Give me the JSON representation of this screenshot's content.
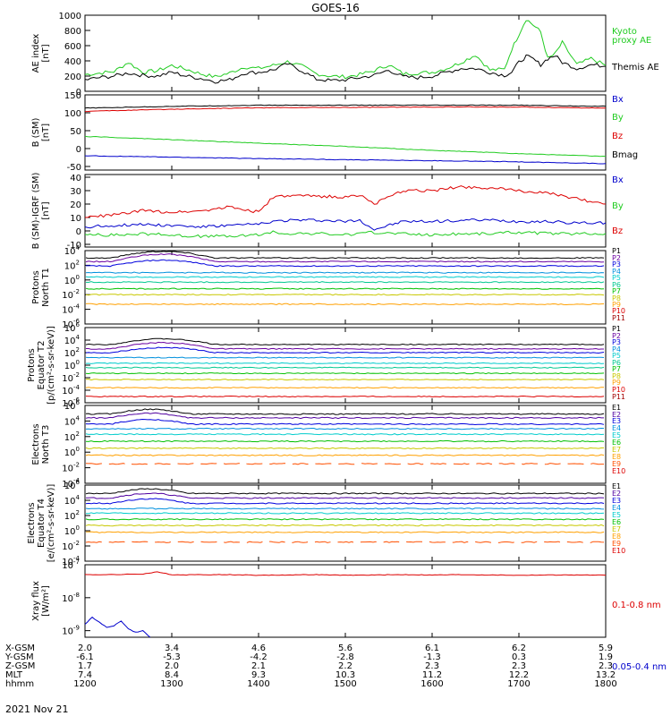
{
  "title": "GOES-16",
  "date_label": "2021 Nov 21",
  "colors": {
    "black": "#000000",
    "red": "#dd0000",
    "green": "#22cc22",
    "blue": "#0000cc",
    "p": [
      "#000000",
      "#6a00a0",
      "#0000dd",
      "#0090dd",
      "#00cccc",
      "#00c890",
      "#00c000",
      "#c8c800",
      "#ffa000",
      "#dd0000",
      "#a00000"
    ],
    "e": [
      "#000000",
      "#5000a0",
      "#0000dd",
      "#0090dd",
      "#00cccc",
      "#00c000",
      "#c8c800",
      "#ffa000",
      "#ff5000",
      "#dd0000"
    ]
  },
  "chart_data": [
    {
      "type": "line",
      "panel": "ae",
      "ylabel": [
        "AE index",
        "[nT]"
      ],
      "ylim": [
        0,
        1000
      ],
      "yticks": [
        "1000",
        "800",
        "600",
        "400",
        "200",
        "0"
      ],
      "legend": [
        {
          "text": "Kyoto",
          "color": "green"
        },
        {
          "text": "proxy AE",
          "color": "green"
        },
        {
          "text": "Themis AE",
          "color": "black"
        }
      ],
      "series": [
        {
          "name": "Kyoto proxy AE",
          "color": "green",
          "x": [
            1200,
            1210,
            1220,
            1230,
            1240,
            1250,
            1300,
            1310,
            1320,
            1330,
            1340,
            1350,
            1400,
            1410,
            1420,
            1430,
            1440,
            1450,
            1500,
            1510,
            1520,
            1530,
            1540,
            1550,
            1600,
            1610,
            1620,
            1630,
            1640,
            1650,
            1655,
            1700,
            1705,
            1710,
            1715,
            1720,
            1725,
            1730,
            1740,
            1750,
            1800
          ],
          "y": [
            220,
            240,
            260,
            380,
            250,
            270,
            340,
            290,
            230,
            190,
            240,
            320,
            300,
            340,
            390,
            330,
            230,
            200,
            190,
            220,
            270,
            350,
            230,
            240,
            250,
            300,
            380,
            480,
            280,
            290,
            550,
            750,
            950,
            870,
            780,
            430,
            490,
            640,
            350,
            430,
            340
          ]
        },
        {
          "name": "Themis AE",
          "color": "black",
          "x": [
            1200,
            1210,
            1220,
            1230,
            1240,
            1250,
            1300,
            1310,
            1320,
            1330,
            1340,
            1350,
            1400,
            1410,
            1420,
            1430,
            1440,
            1450,
            1500,
            1510,
            1520,
            1530,
            1540,
            1550,
            1600,
            1610,
            1620,
            1630,
            1640,
            1650,
            1655,
            1700,
            1705,
            1710,
            1715,
            1720,
            1725,
            1730,
            1740,
            1750,
            1800
          ],
          "y": [
            150,
            180,
            200,
            240,
            210,
            200,
            250,
            200,
            170,
            130,
            150,
            240,
            250,
            280,
            360,
            270,
            160,
            140,
            150,
            180,
            210,
            280,
            190,
            180,
            200,
            250,
            300,
            300,
            250,
            210,
            250,
            380,
            460,
            420,
            350,
            430,
            470,
            380,
            300,
            350,
            330
          ]
        }
      ]
    },
    {
      "type": "line",
      "panel": "b",
      "ylabel": [
        "B (SM)",
        "[nT]"
      ],
      "ylim": [
        -60,
        150
      ],
      "yticks": [
        "150",
        "100",
        "50",
        "0",
        "-50"
      ],
      "legend": [
        {
          "text": "Bx",
          "color": "blue"
        },
        {
          "text": "By",
          "color": "green"
        },
        {
          "text": "Bz",
          "color": "red"
        },
        {
          "text": "Bmag",
          "color": "black"
        }
      ],
      "series": [
        {
          "name": "Bmag",
          "color": "black",
          "x": [
            1200,
            1300,
            1400,
            1500,
            1600,
            1700,
            1800
          ],
          "y": [
            113,
            118,
            121,
            121,
            121,
            121,
            118
          ]
        },
        {
          "name": "Bz",
          "color": "red",
          "x": [
            1200,
            1300,
            1400,
            1500,
            1600,
            1700,
            1800
          ],
          "y": [
            104,
            110,
            114,
            115,
            116,
            116,
            113
          ]
        },
        {
          "name": "By",
          "color": "green",
          "x": [
            1200,
            1300,
            1400,
            1500,
            1600,
            1700,
            1800
          ],
          "y": [
            34,
            25,
            15,
            6,
            -5,
            -14,
            -22
          ]
        },
        {
          "name": "Bx",
          "color": "blue",
          "x": [
            1200,
            1300,
            1400,
            1500,
            1600,
            1700,
            1800
          ],
          "y": [
            -20,
            -24,
            -28,
            -31,
            -34,
            -37,
            -42
          ]
        }
      ]
    },
    {
      "type": "line",
      "panel": "db",
      "ylabel": [
        "B (SM)-IGRF (SM)",
        "[nT]"
      ],
      "ylim": [
        -12,
        42
      ],
      "yticks": [
        "40",
        "30",
        "20",
        "10",
        "0",
        "-10"
      ],
      "legend": [
        {
          "text": "Bx",
          "color": "blue"
        },
        {
          "text": "By",
          "color": "green"
        },
        {
          "text": "Bz",
          "color": "red"
        }
      ],
      "series": [
        {
          "name": "Bz",
          "color": "red",
          "x": [
            1200,
            1220,
            1240,
            1300,
            1320,
            1340,
            1400,
            1410,
            1420,
            1440,
            1500,
            1510,
            1520,
            1540,
            1600,
            1620,
            1640,
            1700,
            1720,
            1740,
            1800
          ],
          "y": [
            10,
            12,
            15,
            14,
            15,
            18,
            14,
            25,
            26,
            26,
            25,
            27,
            20,
            30,
            30,
            33,
            32,
            30,
            28,
            24,
            20
          ]
        },
        {
          "name": "Bx",
          "color": "blue",
          "x": [
            1200,
            1220,
            1240,
            1300,
            1320,
            1340,
            1400,
            1410,
            1420,
            1440,
            1500,
            1510,
            1520,
            1540,
            1600,
            1620,
            1640,
            1700,
            1720,
            1740,
            1800
          ],
          "y": [
            3,
            4,
            5,
            4,
            3,
            4,
            5,
            7,
            8,
            8,
            7,
            8,
            1,
            7,
            7,
            8,
            8,
            7,
            7,
            6,
            6
          ]
        },
        {
          "name": "By",
          "color": "green",
          "x": [
            1200,
            1220,
            1240,
            1300,
            1320,
            1340,
            1400,
            1410,
            1420,
            1440,
            1500,
            1510,
            1520,
            1540,
            1600,
            1620,
            1640,
            1700,
            1720,
            1740,
            1800
          ],
          "y": [
            -3,
            -3,
            -2,
            -3,
            -4,
            -4,
            -3,
            -1,
            -2,
            -2,
            -3,
            -2,
            -1,
            -2,
            -3,
            -2,
            -2,
            -1,
            -2,
            -2,
            -2
          ]
        }
      ]
    },
    {
      "type": "line",
      "panel": "p1",
      "ylog": true,
      "ylabel": [
        "Protons",
        "North T1"
      ],
      "ylim": [
        -6,
        4
      ],
      "yticks": [
        {
          "m": "10",
          "e": "4",
          "v": 4
        },
        {
          "m": "10",
          "e": "2",
          "v": 2
        },
        {
          "m": "10",
          "e": "0",
          "v": 0
        },
        {
          "m": "10",
          "e": "-2",
          "v": -2
        },
        {
          "m": "10",
          "e": "-4",
          "v": -4
        },
        {
          "m": "10",
          "e": "-6",
          "v": -6
        }
      ],
      "legend": [
        "P1",
        "P2",
        "P3",
        "P4",
        "P5",
        "P6",
        "P7",
        "P8",
        "P9",
        "P10",
        "P11"
      ],
      "log10_levels": [
        3.0,
        2.5,
        1.9,
        1.0,
        0.4,
        -0.3,
        -1.2,
        -2.0,
        -3.3,
        null,
        null
      ]
    },
    {
      "type": "line",
      "panel": "p2",
      "ylog": true,
      "ylabel": [
        "Protons",
        "Equator T2",
        "[p/(cm²-s-sr-keV)]"
      ],
      "ylim": [
        -6,
        6
      ],
      "yticks": [
        {
          "m": "10",
          "e": "6",
          "v": 6
        },
        {
          "m": "10",
          "e": "4",
          "v": 4
        },
        {
          "m": "10",
          "e": "2",
          "v": 2
        },
        {
          "m": "10",
          "e": "0",
          "v": 0
        },
        {
          "m": "10",
          "e": "-2",
          "v": -2
        },
        {
          "m": "10",
          "e": "-4",
          "v": -4
        },
        {
          "m": "10",
          "e": "-6",
          "v": -6
        }
      ],
      "legend": [
        "P1",
        "P2",
        "P3",
        "P4",
        "P5",
        "P6",
        "P7",
        "P8",
        "P9",
        "P10",
        "P11"
      ],
      "log10_levels": [
        3.3,
        2.6,
        2.0,
        1.2,
        0.3,
        -0.4,
        -1.3,
        -2.3,
        -3.6,
        -5.0,
        null
      ]
    },
    {
      "type": "line",
      "panel": "e1",
      "ylog": true,
      "ylabel": [
        "Electrons",
        "North T3"
      ],
      "ylim": [
        -4,
        6
      ],
      "yticks": [
        {
          "m": "10",
          "e": "6",
          "v": 6
        },
        {
          "m": "10",
          "e": "4",
          "v": 4
        },
        {
          "m": "10",
          "e": "2",
          "v": 2
        },
        {
          "m": "10",
          "e": "0",
          "v": 0
        },
        {
          "m": "10",
          "e": "-2",
          "v": -2
        },
        {
          "m": "10",
          "e": "-4",
          "v": -4
        }
      ],
      "legend": [
        "E1",
        "E2",
        "E3",
        "E4",
        "E5",
        "E6",
        "E7",
        "E8",
        "E9",
        "E10"
      ],
      "log10_levels": [
        4.9,
        4.4,
        3.6,
        3.0,
        2.3,
        1.4,
        0.5,
        -0.4,
        -1.5,
        null
      ]
    },
    {
      "type": "line",
      "panel": "e2",
      "ylog": true,
      "ylabel": [
        "Electrons",
        "Equator T4",
        "[e/(cm²-s-sr-keV)]"
      ],
      "ylim": [
        -4,
        6
      ],
      "yticks": [
        {
          "m": "10",
          "e": "6",
          "v": 6
        },
        {
          "m": "10",
          "e": "4",
          "v": 4
        },
        {
          "m": "10",
          "e": "2",
          "v": 2
        },
        {
          "m": "10",
          "e": "0",
          "v": 0
        },
        {
          "m": "10",
          "e": "-2",
          "v": -2
        },
        {
          "m": "10",
          "e": "-4",
          "v": -4
        }
      ],
      "legend": [
        "E1",
        "E2",
        "E3",
        "E4",
        "E5",
        "E6",
        "E7",
        "E8",
        "E9",
        "E10"
      ],
      "log10_levels": [
        4.9,
        4.3,
        3.6,
        2.9,
        2.3,
        1.5,
        0.7,
        -0.2,
        -1.5,
        null
      ]
    },
    {
      "type": "line",
      "panel": "xray",
      "ylog": true,
      "ylabel": [
        "Xray flux",
        "[W/m²]"
      ],
      "ylim": [
        -9.2,
        -7
      ],
      "yticks": [
        {
          "m": "10",
          "e": "-7",
          "v": -7
        },
        {
          "m": "10",
          "e": "-8",
          "v": -8
        },
        {
          "m": "10",
          "e": "-9",
          "v": -9
        }
      ],
      "legend": [
        {
          "text": "0.1-0.8 nm",
          "color": "red"
        },
        {
          "text": "0.05-0.4 nm",
          "color": "blue"
        }
      ],
      "series": [
        {
          "name": "0.1-0.8 nm",
          "color": "red",
          "x": [
            1200,
            1220,
            1240,
            1250,
            1300,
            1310,
            1320,
            1340,
            1400,
            1420,
            1440,
            1500,
            1520,
            1540,
            1600,
            1620,
            1640,
            1700,
            1720,
            1740,
            1800
          ],
          "y": [
            -7.3,
            -7.3,
            -7.28,
            -7.22,
            -7.3,
            -7.31,
            -7.3,
            -7.3,
            -7.32,
            -7.31,
            -7.3,
            -7.32,
            -7.31,
            -7.3,
            -7.31,
            -7.3,
            -7.31,
            -7.32,
            -7.31,
            -7.31,
            -7.32
          ]
        },
        {
          "name": "0.05-0.4 nm",
          "color": "blue",
          "x": [
            1200,
            1205,
            1210,
            1215,
            1220,
            1225,
            1230,
            1235,
            1240,
            1245
          ],
          "y": [
            -8.8,
            -8.6,
            -8.75,
            -8.9,
            -8.85,
            -8.7,
            -8.95,
            -9.05,
            -9.0,
            -9.2
          ]
        }
      ]
    }
  ],
  "x_axis": {
    "xlim": [
      1200,
      1800
    ],
    "rows": [
      {
        "label": "X-GSM",
        "values": [
          "2.0",
          "3.4",
          "4.6",
          "5.6",
          "6.1",
          "6.2",
          "5.9"
        ]
      },
      {
        "label": "Y-GSM",
        "values": [
          "-6.1",
          "-5.3",
          "-4.2",
          "-2.8",
          "-1.3",
          "0.3",
          "1.9"
        ]
      },
      {
        "label": "Z-GSM",
        "values": [
          "1.7",
          "2.0",
          "2.1",
          "2.2",
          "2.3",
          "2.3",
          "2.3"
        ]
      },
      {
        "label": "MLT",
        "values": [
          "7.4",
          "8.4",
          "9.3",
          "10.3",
          "11.2",
          "12.2",
          "13.2"
        ]
      },
      {
        "label": "hhmm",
        "values": [
          "1200",
          "1300",
          "1400",
          "1500",
          "1600",
          "1700",
          "1800"
        ]
      }
    ]
  }
}
